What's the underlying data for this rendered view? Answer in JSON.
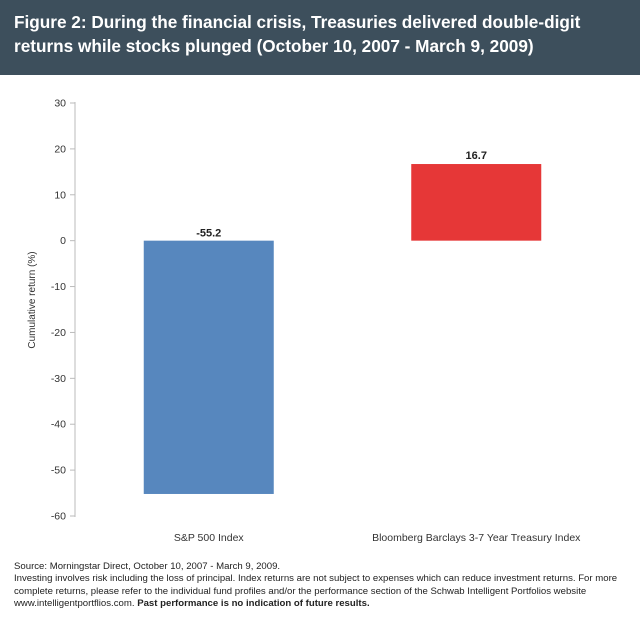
{
  "header": {
    "title": "Figure 2: During the financial crisis, Treasuries delivered double-digit returns while stocks plunged  (October 10, 2007 - March 9, 2009)"
  },
  "chart_data": {
    "type": "bar",
    "title": "Figure 2: During the financial crisis, Treasuries delivered double-digit returns while stocks plunged  (October 10, 2007 - March 9, 2009)",
    "categories": [
      "S&P 500 Index",
      "Bloomberg Barclays 3-7 Year Treasury Index"
    ],
    "values": [
      -55.2,
      16.7
    ],
    "value_labels": [
      "-55.2",
      "16.7"
    ],
    "bar_colors": [
      "#5787be",
      "#e63737"
    ],
    "xlabel": "",
    "ylabel": "Cumulative return (%)",
    "ylim": [
      -60,
      30
    ],
    "yticks": [
      30,
      20,
      10,
      0,
      -10,
      -20,
      -30,
      -40,
      -50,
      -60
    ],
    "grid": false
  },
  "footer": {
    "source": "Source: Morningstar Direct, October 10, 2007 - March 9, 2009.",
    "disclaimer": "Investing involves risk including the loss of principal. Index returns are not subject to expenses which can reduce investment returns. For more complete returns, please refer to the individual fund profiles and/or the performance section of the Schwab Intelligent Portfolios website www.intelligentportflios.com.",
    "past_performance": "Past performance is no indication of future results."
  }
}
